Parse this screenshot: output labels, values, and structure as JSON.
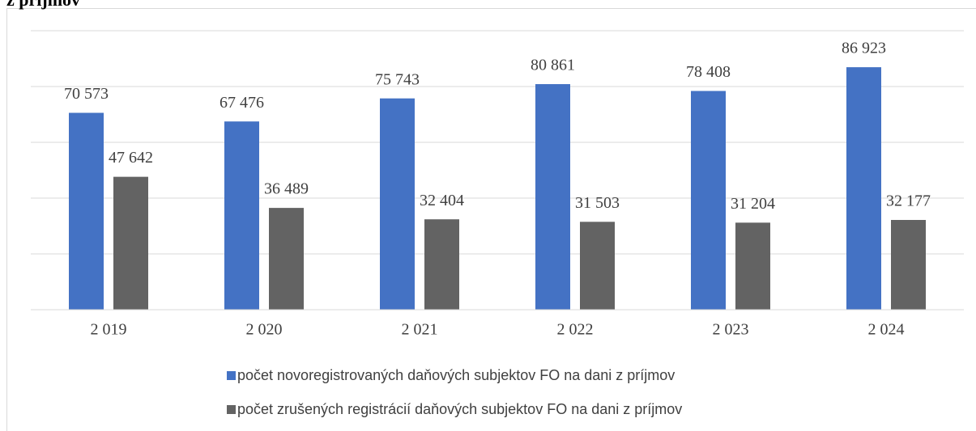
{
  "chart_data": {
    "type": "bar",
    "title": "z príjmov",
    "categories": [
      "2 019",
      "2 020",
      "2 021",
      "2 022",
      "2 023",
      "2 024"
    ],
    "series": [
      {
        "name": "počet novoregistrovaných daňových subjektov FO  na dani z príjmov",
        "color": "#4472c4",
        "values": [
          70573,
          67476,
          75743,
          80861,
          78408,
          86923
        ],
        "value_labels": [
          "70 573",
          "67 476",
          "75 743",
          "80 861",
          "78 408",
          "86 923"
        ]
      },
      {
        "name": "počet zrušených registrácií daňových subjektov FO na dani z príjmov",
        "color": "#636363",
        "values": [
          47642,
          36489,
          32404,
          31503,
          31204,
          32177
        ],
        "value_labels": [
          "47 642",
          "36 489",
          "32 404",
          "31 503",
          "31 204",
          "32 177"
        ]
      }
    ],
    "ylim": [
      0,
      100000
    ],
    "yticks": [
      0,
      20000,
      40000,
      60000,
      80000,
      100000
    ],
    "grid": true,
    "legend": "bottom"
  }
}
